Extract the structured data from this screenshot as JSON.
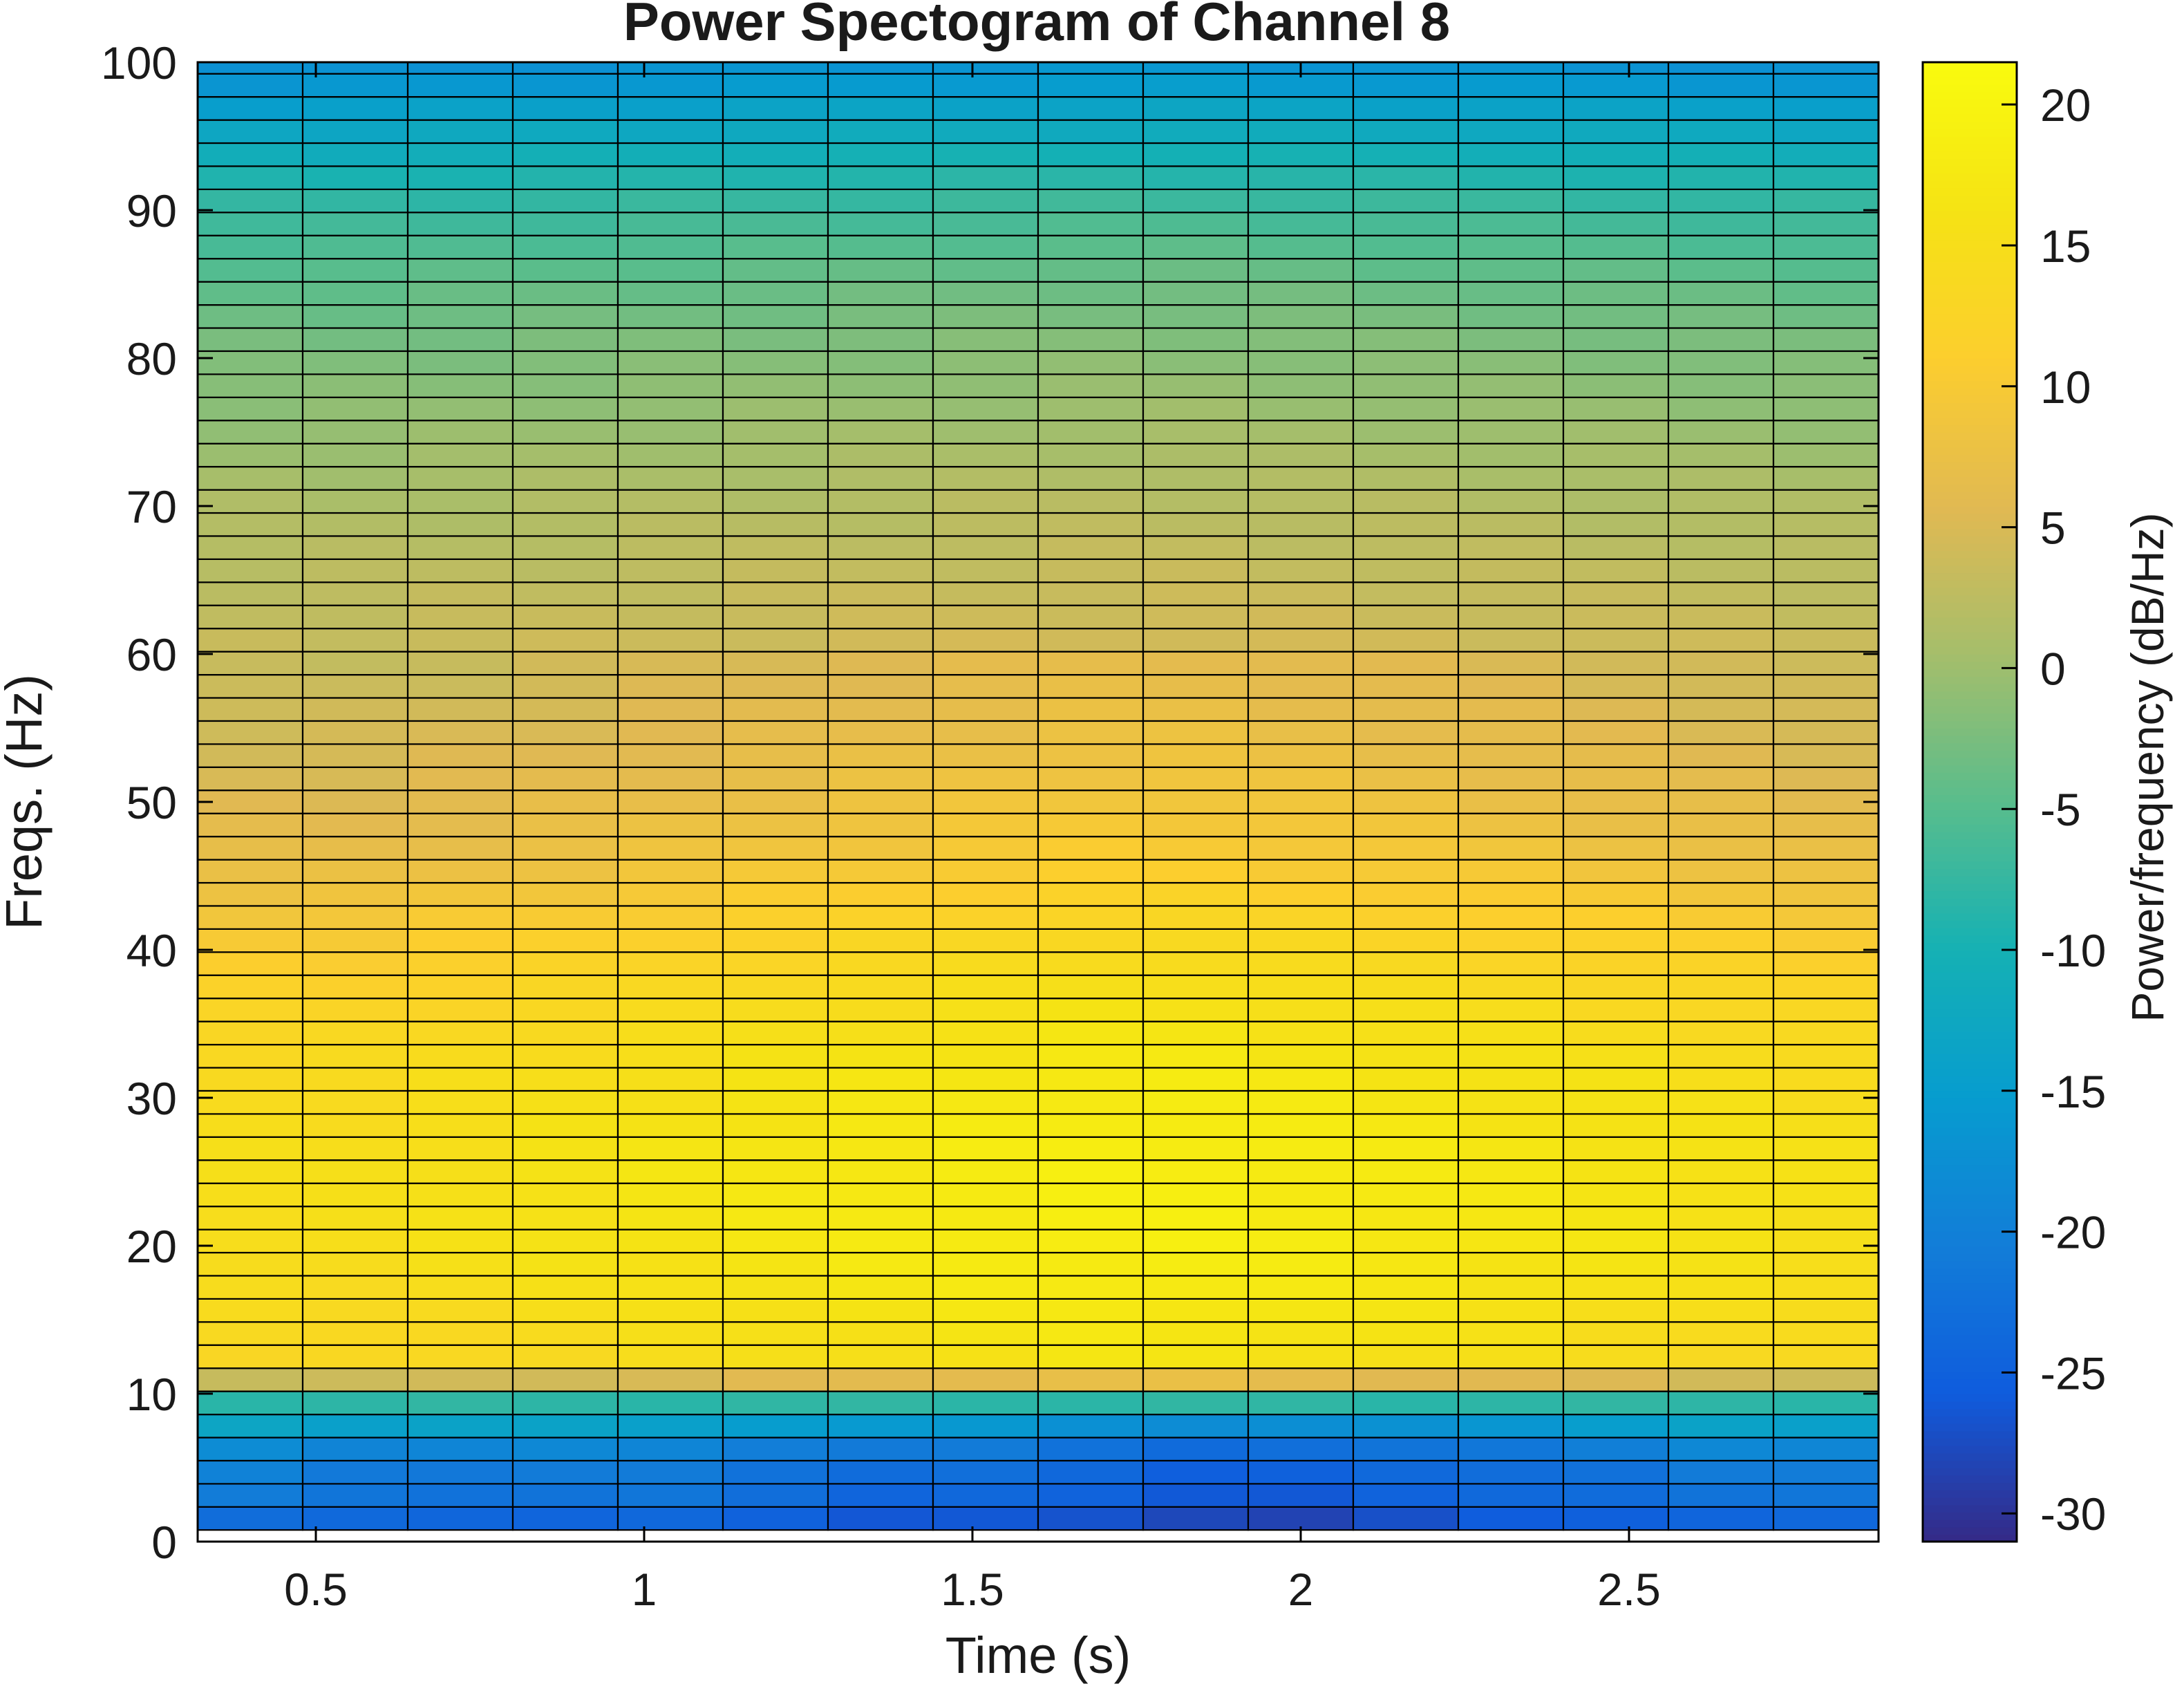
{
  "chart_data": {
    "type": "heatmap",
    "title": "Power Spectogram of Channel 8",
    "xlabel": "Time (s)",
    "ylabel": "Freqs. (Hz)",
    "colorbar_label": "Power/frequency (dB/Hz)",
    "xlim": [
      0.32,
      2.88
    ],
    "ylim": [
      0,
      100
    ],
    "clim": [
      -31,
      21.5
    ],
    "x_ticks": [
      0.5,
      1,
      1.5,
      2,
      2.5
    ],
    "x_tick_labels": [
      "0.5",
      "1",
      "1.5",
      "2",
      "2.5"
    ],
    "y_ticks": [
      0,
      10,
      20,
      30,
      40,
      50,
      60,
      70,
      80,
      90,
      100
    ],
    "y_tick_labels": [
      "0",
      "10",
      "20",
      "30",
      "40",
      "50",
      "60",
      "70",
      "80",
      "90",
      "100"
    ],
    "colorbar_ticks": [
      -30,
      -25,
      -20,
      -15,
      -10,
      -5,
      0,
      5,
      10,
      15,
      20
    ],
    "colorbar_tick_labels": [
      "-30",
      "-25",
      "-20",
      "-15",
      "-10",
      "-5",
      "0",
      "5",
      "10",
      "15",
      "20"
    ],
    "colormap": "parula",
    "time_bins": [
      0.4,
      0.56,
      0.72,
      0.88,
      1.04,
      1.2,
      1.36,
      1.52,
      1.68,
      1.84,
      2.0,
      2.16,
      2.32,
      2.48,
      2.64,
      2.8
    ],
    "freq_bin_width_hz": 1.5625,
    "freq_range_hz": [
      1.5625,
      100
    ],
    "power_db_profile_by_freq": [
      [
        1.5625,
        -24
      ],
      [
        3,
        -22
      ],
      [
        4.7,
        -21
      ],
      [
        6.3,
        -19
      ],
      [
        7.8,
        -14
      ],
      [
        9.4,
        -8
      ],
      [
        10.5,
        2
      ],
      [
        12.5,
        14
      ],
      [
        20,
        16
      ],
      [
        26,
        16
      ],
      [
        32,
        15
      ],
      [
        37,
        13
      ],
      [
        41,
        11
      ],
      [
        46,
        8
      ],
      [
        52,
        6
      ],
      [
        60,
        4
      ],
      [
        70,
        1.5
      ],
      [
        80,
        -2
      ],
      [
        85,
        -4
      ],
      [
        90,
        -7
      ],
      [
        93,
        -10
      ],
      [
        96,
        -13
      ],
      [
        98.5,
        -16
      ],
      [
        100,
        -17
      ]
    ],
    "power_db_time_offset": [
      -1,
      -1,
      -0.5,
      0,
      0.5,
      1,
      1.5,
      2,
      2.5,
      2.5,
      2,
      1.5,
      1,
      0.5,
      0,
      -0.5
    ],
    "low_freq_time_offset": [
      1,
      0,
      0,
      0,
      0,
      -1,
      -2,
      -2,
      -3,
      -4,
      -4,
      -3,
      -2,
      -1,
      0,
      0
    ]
  }
}
